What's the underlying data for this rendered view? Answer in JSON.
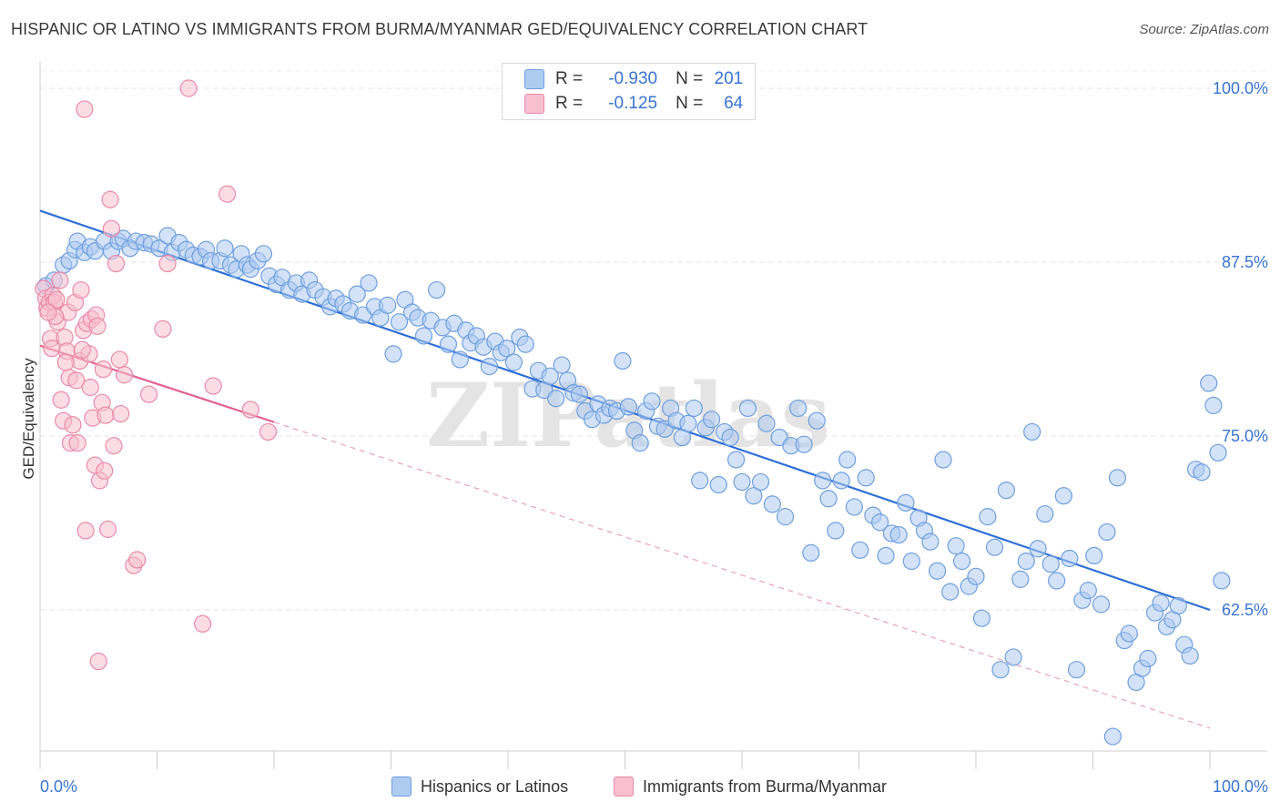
{
  "header": {
    "title": "HISPANIC OR LATINO VS IMMIGRANTS FROM BURMA/MYANMAR GED/EQUIVALENCY CORRELATION CHART",
    "source": "Source: ZipAtlas.com"
  },
  "watermark": "ZIPatlas",
  "legend": {
    "r_label": "R =",
    "n_label": "N =",
    "rows": [
      {
        "r": "-0.930",
        "n": "201",
        "color": "#aecbf0",
        "border": "#6f9fdd"
      },
      {
        "r": "-0.125",
        "n": "64",
        "color": "#f7bfd0",
        "border": "#e88aa9"
      }
    ]
  },
  "bottom_legend": {
    "items": [
      {
        "label": "Hispanics or Latinos",
        "color": "#aecbf0",
        "border": "#6f9fdd"
      },
      {
        "label": "Immigrants from Burma/Myanmar",
        "color": "#f7bfd0",
        "border": "#e88aa9"
      }
    ]
  },
  "chart_data": {
    "type": "scatter",
    "title": "HISPANIC OR LATINO VS IMMIGRANTS FROM BURMA/MYANMAR GED/EQUIVALENCY CORRELATION CHART",
    "xlabel": "",
    "ylabel": "GED/Equivalency",
    "xlim": [
      0,
      100
    ],
    "ylim": [
      52.5,
      102
    ],
    "x_tick_labels": [
      "0.0%",
      "100.0%"
    ],
    "y_ticks": [
      62.5,
      75.0,
      87.5,
      100.0
    ],
    "y_tick_labels": [
      "62.5%",
      "75.0%",
      "87.5%",
      "100.0%"
    ],
    "grid": true,
    "series": [
      {
        "name": "Hispanics or Latinos",
        "color": "#6f9fdd",
        "fill": "#aecbf0",
        "points": [
          [
            0.5,
            85.8
          ],
          [
            1.2,
            86.2
          ],
          [
            2.0,
            87.3
          ],
          [
            2.5,
            87.6
          ],
          [
            3.0,
            88.4
          ],
          [
            3.2,
            89.0
          ],
          [
            3.8,
            88.2
          ],
          [
            4.3,
            88.6
          ],
          [
            4.7,
            88.3
          ],
          [
            5.5,
            89.0
          ],
          [
            6.1,
            88.3
          ],
          [
            6.7,
            89.0
          ],
          [
            7.1,
            89.2
          ],
          [
            7.7,
            88.5
          ],
          [
            8.2,
            89.0
          ],
          [
            8.9,
            88.9
          ],
          [
            9.5,
            88.8
          ],
          [
            10.2,
            88.5
          ],
          [
            10.9,
            89.4
          ],
          [
            11.3,
            88.2
          ],
          [
            11.9,
            88.9
          ],
          [
            12.5,
            88.4
          ],
          [
            13.1,
            88.0
          ],
          [
            13.7,
            87.9
          ],
          [
            14.2,
            88.4
          ],
          [
            14.6,
            87.6
          ],
          [
            15.4,
            87.6
          ],
          [
            15.8,
            88.5
          ],
          [
            16.3,
            87.3
          ],
          [
            16.8,
            87.0
          ],
          [
            17.2,
            88.1
          ],
          [
            17.7,
            87.3
          ],
          [
            18.0,
            87.0
          ],
          [
            18.6,
            87.6
          ],
          [
            19.1,
            88.1
          ],
          [
            19.6,
            86.5
          ],
          [
            20.2,
            85.9
          ],
          [
            20.7,
            86.4
          ],
          [
            21.3,
            85.5
          ],
          [
            21.9,
            86.0
          ],
          [
            22.4,
            85.2
          ],
          [
            23.0,
            86.2
          ],
          [
            23.5,
            85.5
          ],
          [
            24.2,
            85.0
          ],
          [
            24.8,
            84.3
          ],
          [
            25.3,
            84.9
          ],
          [
            25.9,
            84.5
          ],
          [
            26.5,
            84.0
          ],
          [
            27.1,
            85.2
          ],
          [
            27.6,
            83.7
          ],
          [
            28.1,
            86.0
          ],
          [
            28.6,
            84.3
          ],
          [
            29.1,
            83.5
          ],
          [
            29.7,
            84.4
          ],
          [
            30.2,
            80.9
          ],
          [
            30.7,
            83.2
          ],
          [
            31.2,
            84.8
          ],
          [
            31.8,
            83.9
          ],
          [
            32.3,
            83.5
          ],
          [
            32.8,
            82.2
          ],
          [
            33.4,
            83.3
          ],
          [
            33.9,
            85.5
          ],
          [
            34.4,
            82.8
          ],
          [
            34.9,
            81.6
          ],
          [
            35.4,
            83.1
          ],
          [
            35.9,
            80.5
          ],
          [
            36.4,
            82.6
          ],
          [
            36.8,
            81.7
          ],
          [
            37.3,
            82.2
          ],
          [
            37.9,
            81.4
          ],
          [
            38.4,
            80.0
          ],
          [
            38.9,
            81.8
          ],
          [
            39.4,
            81.0
          ],
          [
            39.9,
            81.3
          ],
          [
            40.5,
            80.3
          ],
          [
            41.0,
            82.1
          ],
          [
            41.5,
            81.6
          ],
          [
            42.1,
            78.4
          ],
          [
            42.6,
            79.7
          ],
          [
            43.1,
            78.3
          ],
          [
            43.6,
            79.3
          ],
          [
            44.1,
            77.7
          ],
          [
            44.6,
            80.1
          ],
          [
            45.1,
            79.0
          ],
          [
            45.6,
            78.1
          ],
          [
            46.1,
            78.0
          ],
          [
            46.6,
            76.8
          ],
          [
            47.2,
            76.2
          ],
          [
            47.7,
            77.3
          ],
          [
            48.2,
            76.5
          ],
          [
            48.7,
            77.0
          ],
          [
            49.3,
            76.8
          ],
          [
            49.8,
            80.4
          ],
          [
            50.3,
            77.1
          ],
          [
            50.8,
            75.4
          ],
          [
            51.3,
            74.5
          ],
          [
            51.8,
            76.8
          ],
          [
            52.3,
            77.5
          ],
          [
            52.8,
            75.7
          ],
          [
            53.4,
            75.5
          ],
          [
            53.9,
            77.0
          ],
          [
            54.4,
            76.1
          ],
          [
            54.9,
            74.9
          ],
          [
            55.4,
            75.9
          ],
          [
            55.9,
            77.0
          ],
          [
            56.4,
            71.8
          ],
          [
            56.9,
            75.6
          ],
          [
            57.4,
            76.2
          ],
          [
            58.0,
            71.5
          ],
          [
            58.5,
            75.3
          ],
          [
            59.0,
            74.9
          ],
          [
            59.5,
            73.3
          ],
          [
            60.0,
            71.7
          ],
          [
            60.5,
            77.0
          ],
          [
            61.0,
            70.7
          ],
          [
            61.6,
            71.7
          ],
          [
            62.1,
            75.9
          ],
          [
            62.6,
            70.1
          ],
          [
            63.2,
            74.9
          ],
          [
            63.7,
            69.2
          ],
          [
            64.2,
            74.3
          ],
          [
            64.8,
            77.0
          ],
          [
            65.3,
            74.4
          ],
          [
            65.9,
            66.6
          ],
          [
            66.4,
            76.1
          ],
          [
            66.9,
            71.8
          ],
          [
            67.4,
            70.5
          ],
          [
            68.0,
            68.2
          ],
          [
            68.5,
            71.8
          ],
          [
            69.0,
            73.3
          ],
          [
            69.6,
            69.9
          ],
          [
            70.1,
            66.8
          ],
          [
            70.6,
            72.0
          ],
          [
            71.2,
            69.3
          ],
          [
            71.8,
            68.8
          ],
          [
            72.3,
            66.4
          ],
          [
            72.8,
            68.0
          ],
          [
            73.4,
            67.9
          ],
          [
            74.0,
            70.2
          ],
          [
            74.5,
            66.0
          ],
          [
            75.1,
            69.1
          ],
          [
            75.6,
            68.2
          ],
          [
            76.1,
            67.4
          ],
          [
            76.7,
            65.3
          ],
          [
            77.2,
            73.3
          ],
          [
            77.8,
            63.8
          ],
          [
            78.3,
            67.1
          ],
          [
            78.8,
            66.0
          ],
          [
            79.4,
            64.2
          ],
          [
            80.0,
            64.9
          ],
          [
            80.5,
            61.9
          ],
          [
            81.0,
            69.2
          ],
          [
            81.6,
            67.0
          ],
          [
            82.1,
            58.2
          ],
          [
            82.6,
            71.1
          ],
          [
            83.2,
            59.1
          ],
          [
            83.8,
            64.7
          ],
          [
            84.3,
            66.0
          ],
          [
            84.8,
            75.3
          ],
          [
            85.3,
            66.9
          ],
          [
            85.9,
            69.4
          ],
          [
            86.4,
            65.8
          ],
          [
            86.9,
            64.6
          ],
          [
            87.5,
            70.7
          ],
          [
            88.0,
            66.2
          ],
          [
            88.6,
            58.2
          ],
          [
            89.1,
            63.2
          ],
          [
            89.6,
            63.9
          ],
          [
            90.1,
            66.4
          ],
          [
            90.7,
            62.9
          ],
          [
            91.2,
            68.1
          ],
          [
            91.7,
            53.4
          ],
          [
            92.1,
            72.0
          ],
          [
            92.7,
            60.3
          ],
          [
            93.1,
            60.8
          ],
          [
            93.7,
            57.3
          ],
          [
            94.2,
            58.3
          ],
          [
            94.7,
            59.0
          ],
          [
            95.3,
            62.3
          ],
          [
            95.8,
            63.0
          ],
          [
            96.3,
            61.3
          ],
          [
            96.8,
            61.8
          ],
          [
            97.3,
            62.8
          ],
          [
            97.8,
            60.0
          ],
          [
            98.3,
            59.2
          ],
          [
            98.8,
            72.6
          ],
          [
            99.3,
            72.4
          ],
          [
            99.9,
            78.8
          ],
          [
            100.3,
            77.2
          ],
          [
            100.7,
            73.8
          ],
          [
            101.0,
            64.6
          ]
        ],
        "trend": {
          "x0": 0,
          "y0": 91.2,
          "x1": 100,
          "y1": 62.5
        }
      },
      {
        "name": "Immigrants from Burma/Myanmar",
        "color": "#e88aa9",
        "fill": "#f7bfd0",
        "points": [
          [
            0.3,
            85.6
          ],
          [
            0.5,
            84.9
          ],
          [
            0.6,
            84.2
          ],
          [
            0.8,
            84.6
          ],
          [
            0.9,
            82.0
          ],
          [
            1.0,
            81.3
          ],
          [
            1.1,
            85.1
          ],
          [
            1.2,
            84.6
          ],
          [
            1.4,
            84.8
          ],
          [
            1.5,
            83.2
          ],
          [
            1.7,
            86.2
          ],
          [
            1.8,
            77.6
          ],
          [
            2.0,
            76.1
          ],
          [
            2.1,
            82.1
          ],
          [
            2.3,
            81.1
          ],
          [
            2.4,
            83.9
          ],
          [
            2.5,
            79.2
          ],
          [
            2.6,
            74.5
          ],
          [
            2.8,
            75.8
          ],
          [
            3.0,
            84.6
          ],
          [
            3.1,
            79.0
          ],
          [
            3.2,
            74.5
          ],
          [
            3.4,
            80.4
          ],
          [
            3.5,
            85.5
          ],
          [
            3.7,
            82.6
          ],
          [
            3.8,
            98.5
          ],
          [
            3.9,
            68.2
          ],
          [
            4.0,
            83.1
          ],
          [
            4.2,
            80.9
          ],
          [
            4.3,
            78.5
          ],
          [
            4.4,
            83.4
          ],
          [
            4.5,
            76.3
          ],
          [
            4.7,
            72.9
          ],
          [
            4.8,
            83.7
          ],
          [
            4.9,
            82.9
          ],
          [
            5.0,
            58.8
          ],
          [
            5.1,
            71.8
          ],
          [
            5.3,
            77.4
          ],
          [
            5.4,
            79.8
          ],
          [
            5.5,
            72.5
          ],
          [
            5.6,
            76.5
          ],
          [
            5.8,
            68.3
          ],
          [
            6.0,
            92.0
          ],
          [
            6.1,
            89.9
          ],
          [
            6.3,
            74.3
          ],
          [
            6.5,
            87.4
          ],
          [
            6.8,
            80.5
          ],
          [
            6.9,
            76.6
          ],
          [
            7.2,
            79.4
          ],
          [
            8.0,
            65.7
          ],
          [
            8.3,
            66.1
          ],
          [
            9.3,
            78.0
          ],
          [
            10.5,
            82.7
          ],
          [
            10.9,
            87.4
          ],
          [
            12.7,
            100.0
          ],
          [
            13.9,
            61.5
          ],
          [
            14.8,
            78.6
          ],
          [
            16.0,
            92.4
          ],
          [
            18.0,
            76.9
          ],
          [
            19.5,
            75.3
          ],
          [
            2.2,
            80.3
          ],
          [
            3.6,
            81.2
          ],
          [
            1.3,
            83.6
          ],
          [
            0.7,
            83.9
          ]
        ],
        "trend": {
          "x0": 0,
          "y0": 81.5,
          "x1": 20,
          "y1": 76.0
        },
        "trend_extension": {
          "x0": 20,
          "y0": 76.0,
          "x1": 100,
          "y1": 54.0
        }
      }
    ]
  }
}
